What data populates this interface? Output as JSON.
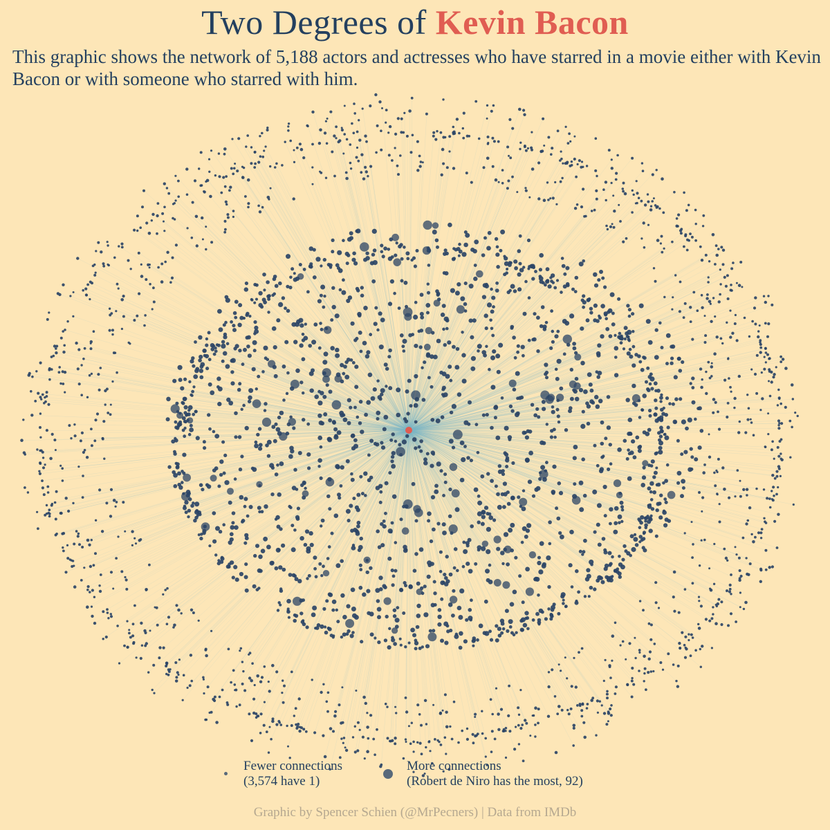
{
  "title": {
    "main": "Two Degrees of",
    "highlight": "Kevin Bacon"
  },
  "subtitle": "This graphic shows the network of 5,188 actors and actresses who have starred in a movie either with Kevin Bacon or with someone who starred with him.",
  "colors": {
    "background": "#fde6b7",
    "node": "#2d4566",
    "center": "#e05d52",
    "edge": "#7fb8c9",
    "text": "#24405f",
    "credit": "#b5a890"
  },
  "chart_data": {
    "type": "network",
    "total_nodes": 5188,
    "center_node": "Kevin Bacon",
    "single_connection_count": 3574,
    "max_connections": {
      "name": "Robert de Niro",
      "count": 92
    }
  },
  "legend": {
    "fewer": {
      "line1": "Fewer connections",
      "line2": "(3,574 have 1)"
    },
    "more": {
      "line1": "More connections",
      "line2": "(Robert de Niro has the most, 92)"
    }
  },
  "credit": "Graphic by Spencer Schien (@MrPecners) | Data from IMDb"
}
